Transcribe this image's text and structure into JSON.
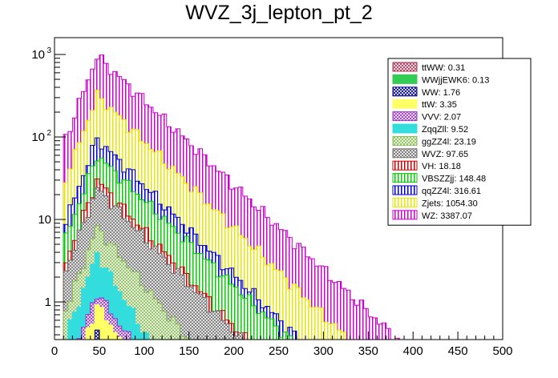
{
  "chart_data": {
    "type": "bar",
    "title": "WVZ_3j_lepton_pt_2",
    "xlabel": "",
    "ylabel": "",
    "xlim": [
      0,
      500
    ],
    "ylim": [
      0.35,
      1600
    ],
    "yscale": "log",
    "stacked": true,
    "bin_width": 5,
    "grid": false,
    "legend_position": "top-right",
    "x_ticks": [
      0,
      50,
      100,
      150,
      200,
      250,
      300,
      350,
      400,
      450,
      500
    ],
    "y_ticks": [
      {
        "value": 1,
        "label": "1",
        "sup": ""
      },
      {
        "value": 10,
        "label": "10",
        "sup": ""
      },
      {
        "value": 100,
        "label": "10",
        "sup": "2"
      },
      {
        "value": 1000,
        "label": "10",
        "sup": "3"
      }
    ],
    "series": [
      {
        "name": "WZ: 3387.07",
        "color": "#cc00cc",
        "pattern": "vlines",
        "stack_start": 10,
        "peak_at": 45,
        "peak": 960,
        "tail_end": 385
      },
      {
        "name": "Zjets: 1054.30",
        "color": "#e6e600",
        "pattern": "vlines",
        "stack_start": 10,
        "peak_at": 45,
        "peak": 320,
        "tail_end": 330
      },
      {
        "name": "qqZZ4l: 316.61",
        "color": "#0000cc",
        "pattern": "vlines",
        "stack_start": 10,
        "peak_at": 45,
        "peak": 95,
        "tail_end": 275
      },
      {
        "name": "VBSZZjj: 148.48",
        "color": "#00cc00",
        "pattern": "vlines",
        "stack_start": 10,
        "peak_at": 45,
        "peak": 60,
        "tail_end": 265
      },
      {
        "name": "VH: 18.18",
        "color": "#cc0000",
        "pattern": "vlines",
        "stack_start": 10,
        "peak_at": 45,
        "peak": 30,
        "tail_end": 215
      },
      {
        "name": "WVZ: 97.65",
        "color": "#707070",
        "pattern": "cross",
        "stack_start": 10,
        "peak_at": 45,
        "peak": 24,
        "tail_end": 210
      },
      {
        "name": "ggZZ4l: 23.19",
        "color": "#88bb55",
        "pattern": "cross",
        "stack_start": 10,
        "peak_at": 45,
        "peak": 8,
        "tail_end": 150
      },
      {
        "name": "ZqqZll: 9.52",
        "color": "#33dddd",
        "pattern": "solid",
        "stack_start": 10,
        "peak_at": 45,
        "peak": 3.8,
        "tail_end": 105
      },
      {
        "name": "VVV: 2.07",
        "color": "#9933cc",
        "pattern": "cross",
        "stack_start": 10,
        "peak_at": 45,
        "peak": 1.3,
        "tail_end": 85
      },
      {
        "name": "ttW: 3.35",
        "color": "#ffff66",
        "pattern": "solid",
        "stack_start": 10,
        "peak_at": 45,
        "peak": 0.9,
        "tail_end": 75
      },
      {
        "name": "WW: 1.76",
        "color": "#000088",
        "pattern": "cross",
        "stack_start": 10,
        "peak_at": 45,
        "peak": 0.4,
        "tail_end": 55
      },
      {
        "name": "WWjjEWK6: 0.13",
        "color": "#33cc55",
        "pattern": "solid",
        "stack_start": 10,
        "peak_at": 45,
        "peak": 0.2,
        "tail_end": 40
      },
      {
        "name": "ttWW: 0.31",
        "color": "#aa3355",
        "pattern": "cross",
        "stack_start": 10,
        "peak_at": 45,
        "peak": 0.12,
        "tail_end": 30
      }
    ]
  }
}
